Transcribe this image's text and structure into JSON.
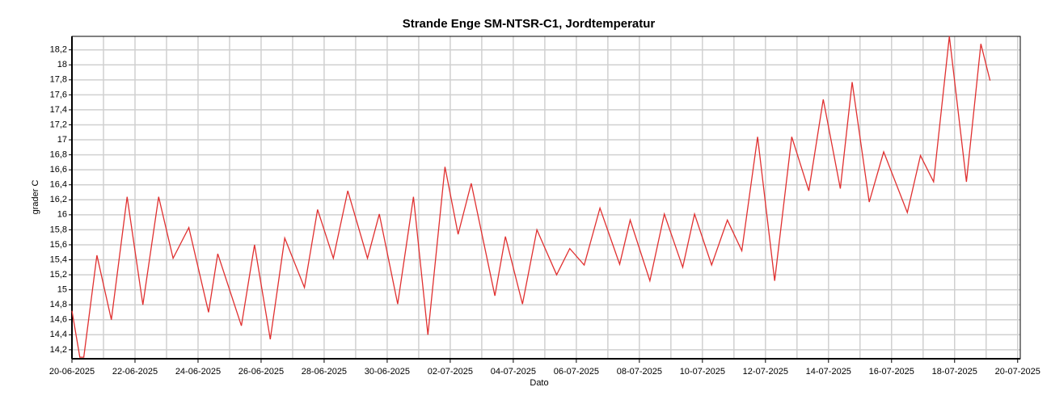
{
  "chart_data": {
    "type": "line",
    "title": "Strande Enge SM-NTSR-C1, Jordtemperatur",
    "x_label": "Dato",
    "y_label": "grader C",
    "x": [
      "2025-06-20T00:00",
      "2025-06-20T06:00",
      "2025-06-20T09:00",
      "2025-06-20T19:00",
      "2025-06-21T06:00",
      "2025-06-21T18:00",
      "2025-06-22T06:00",
      "2025-06-22T18:00",
      "2025-06-23T05:00",
      "2025-06-23T17:00",
      "2025-06-24T08:00",
      "2025-06-24T15:00",
      "2025-06-25T09:00",
      "2025-06-25T19:00",
      "2025-06-26T07:00",
      "2025-06-26T18:00",
      "2025-06-27T09:00",
      "2025-06-27T19:00",
      "2025-06-28T07:00",
      "2025-06-28T18:00",
      "2025-06-29T09:00",
      "2025-06-29T18:00",
      "2025-06-30T08:00",
      "2025-06-30T20:00",
      "2025-07-01T07:00",
      "2025-07-01T20:00",
      "2025-07-02T06:00",
      "2025-07-02T16:00",
      "2025-07-03T10:00",
      "2025-07-03T18:00",
      "2025-07-04T07:00",
      "2025-07-04T18:00",
      "2025-07-05T09:00",
      "2025-07-05T19:00",
      "2025-07-06T06:00",
      "2025-07-06T18:00",
      "2025-07-07T09:00",
      "2025-07-07T17:00",
      "2025-07-08T08:00",
      "2025-07-08T19:00",
      "2025-07-09T09:00",
      "2025-07-09T18:00",
      "2025-07-10T07:00",
      "2025-07-10T19:00",
      "2025-07-11T06:00",
      "2025-07-11T18:00",
      "2025-07-12T07:00",
      "2025-07-12T20:00",
      "2025-07-13T09:00",
      "2025-07-13T20:00",
      "2025-07-14T09:00",
      "2025-07-14T18:00",
      "2025-07-15T07:00",
      "2025-07-15T18:00",
      "2025-07-16T12:00",
      "2025-07-16T22:00",
      "2025-07-17T08:00",
      "2025-07-17T20:00",
      "2025-07-18T09:00",
      "2025-07-18T20:00",
      "2025-07-19T03:00"
    ],
    "series": [
      {
        "name": "Jordtemperatur",
        "color": "#e03030",
        "values": [
          14.72,
          14.1,
          14.1,
          15.46,
          14.6,
          16.24,
          14.8,
          16.24,
          15.42,
          15.83,
          14.7,
          15.48,
          14.52,
          15.6,
          14.34,
          15.69,
          15.03,
          16.07,
          15.42,
          16.32,
          15.42,
          16.01,
          14.81,
          16.24,
          14.4,
          16.64,
          15.74,
          16.42,
          14.92,
          15.71,
          14.81,
          15.8,
          15.2,
          15.55,
          15.33,
          16.09,
          15.34,
          15.93,
          15.12,
          16.01,
          15.3,
          16.01,
          15.33,
          15.93,
          15.52,
          17.04,
          15.12,
          17.04,
          16.32,
          17.54,
          16.35,
          17.77,
          16.17,
          16.84,
          16.03,
          16.79,
          16.44,
          18.38,
          16.44,
          18.28,
          17.79
        ]
      }
    ],
    "xlim": [
      "2025-06-20T00:00",
      "2025-07-20T02:00"
    ],
    "xticks": [
      {
        "value": "2025-06-20",
        "label": "20-06-2025"
      },
      {
        "value": "2025-06-22",
        "label": "22-06-2025"
      },
      {
        "value": "2025-06-24",
        "label": "24-06-2025"
      },
      {
        "value": "2025-06-26",
        "label": "26-06-2025"
      },
      {
        "value": "2025-06-28",
        "label": "28-06-2025"
      },
      {
        "value": "2025-06-30",
        "label": "30-06-2025"
      },
      {
        "value": "2025-07-02",
        "label": "02-07-2025"
      },
      {
        "value": "2025-07-04",
        "label": "04-07-2025"
      },
      {
        "value": "2025-07-06",
        "label": "06-07-2025"
      },
      {
        "value": "2025-07-08",
        "label": "08-07-2025"
      },
      {
        "value": "2025-07-10",
        "label": "10-07-2025"
      },
      {
        "value": "2025-07-12",
        "label": "12-07-2025"
      },
      {
        "value": "2025-07-14",
        "label": "14-07-2025"
      },
      {
        "value": "2025-07-16",
        "label": "16-07-2025"
      },
      {
        "value": "2025-07-18",
        "label": "18-07-2025"
      },
      {
        "value": "2025-07-20",
        "label": "20-07-2025"
      }
    ],
    "ylim": [
      14.08,
      18.38
    ],
    "yticks": [
      {
        "value": 14.2,
        "label": "14,2"
      },
      {
        "value": 14.4,
        "label": "14,4"
      },
      {
        "value": 14.6,
        "label": "14,6"
      },
      {
        "value": 14.8,
        "label": "14,8"
      },
      15,
      {
        "value": 15.2,
        "label": "15,2"
      },
      {
        "value": 15.4,
        "label": "15,4"
      },
      {
        "value": 15.6,
        "label": "15,6"
      },
      {
        "value": 15.8,
        "label": "15,8"
      },
      16,
      {
        "value": 16.2,
        "label": "16,2"
      },
      {
        "value": 16.4,
        "label": "16,4"
      },
      {
        "value": 16.6,
        "label": "16,6"
      },
      {
        "value": 16.8,
        "label": "16,8"
      },
      17,
      {
        "value": 17.2,
        "label": "17,2"
      },
      {
        "value": 17.4,
        "label": "17,4"
      },
      {
        "value": 17.6,
        "label": "17,6"
      },
      {
        "value": 17.8,
        "label": "17,8"
      },
      18,
      {
        "value": 18.2,
        "label": "18,2"
      }
    ],
    "grid": true
  }
}
